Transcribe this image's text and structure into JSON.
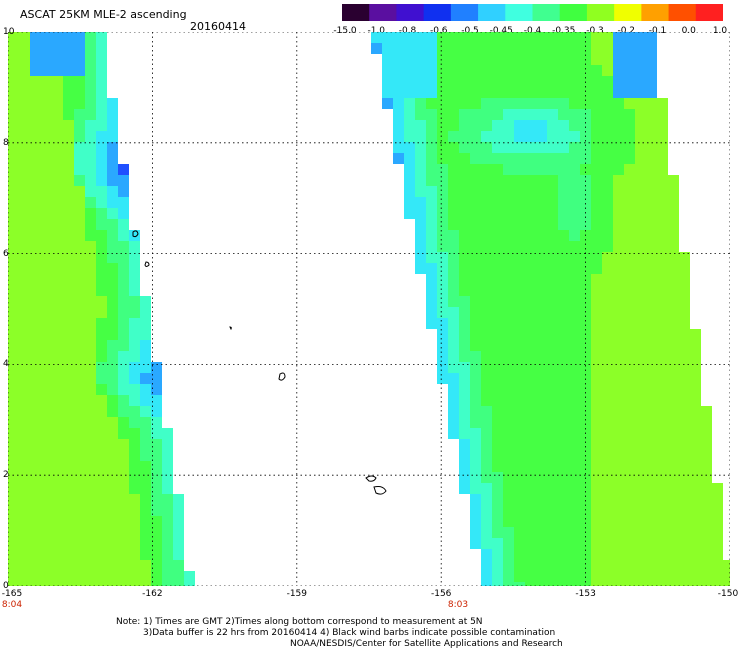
{
  "header": {
    "title": "ASCAT 25KM MLE-2 ascending",
    "date": "20160414"
  },
  "colorbar": {
    "labels": [
      "-15.0",
      "-1.0",
      "-0.8",
      "-0.6",
      "-0.5",
      "-0.45",
      "-0.4",
      "-0.35",
      "-0.3",
      "-0.2",
      "-0.1",
      "0.0",
      "1.0"
    ],
    "colors": [
      "#2a0030",
      "#5a0fa0",
      "#4010d0",
      "#1030f0",
      "#2080ff",
      "#30d0ff",
      "#40ffe0",
      "#40ff90",
      "#40ff40",
      "#90ff20",
      "#f0ff00",
      "#ffa000",
      "#ff5000",
      "#ff2020"
    ]
  },
  "axes": {
    "y_labels": [
      "10",
      "8",
      "6",
      "4",
      "2",
      "0"
    ],
    "x_labels": [
      "-165",
      "-162",
      "-159",
      "-156",
      "-153",
      "-150"
    ],
    "lat_range": [
      0,
      10
    ],
    "lon_range": [
      -165,
      -150
    ]
  },
  "pass_times": [
    {
      "time": "8:04"
    },
    {
      "time": "8:03"
    }
  ],
  "notes": {
    "line1": "Note: 1) Times are GMT 2)Times along bottom correspond to measurement at 5N",
    "line2": "3)Data buffer is 22 hrs from 20160414 4) Black wind barbs indicate possible contamination",
    "line3": "NOAA/NESDIS/Center for Satellite Applications and Research"
  }
}
